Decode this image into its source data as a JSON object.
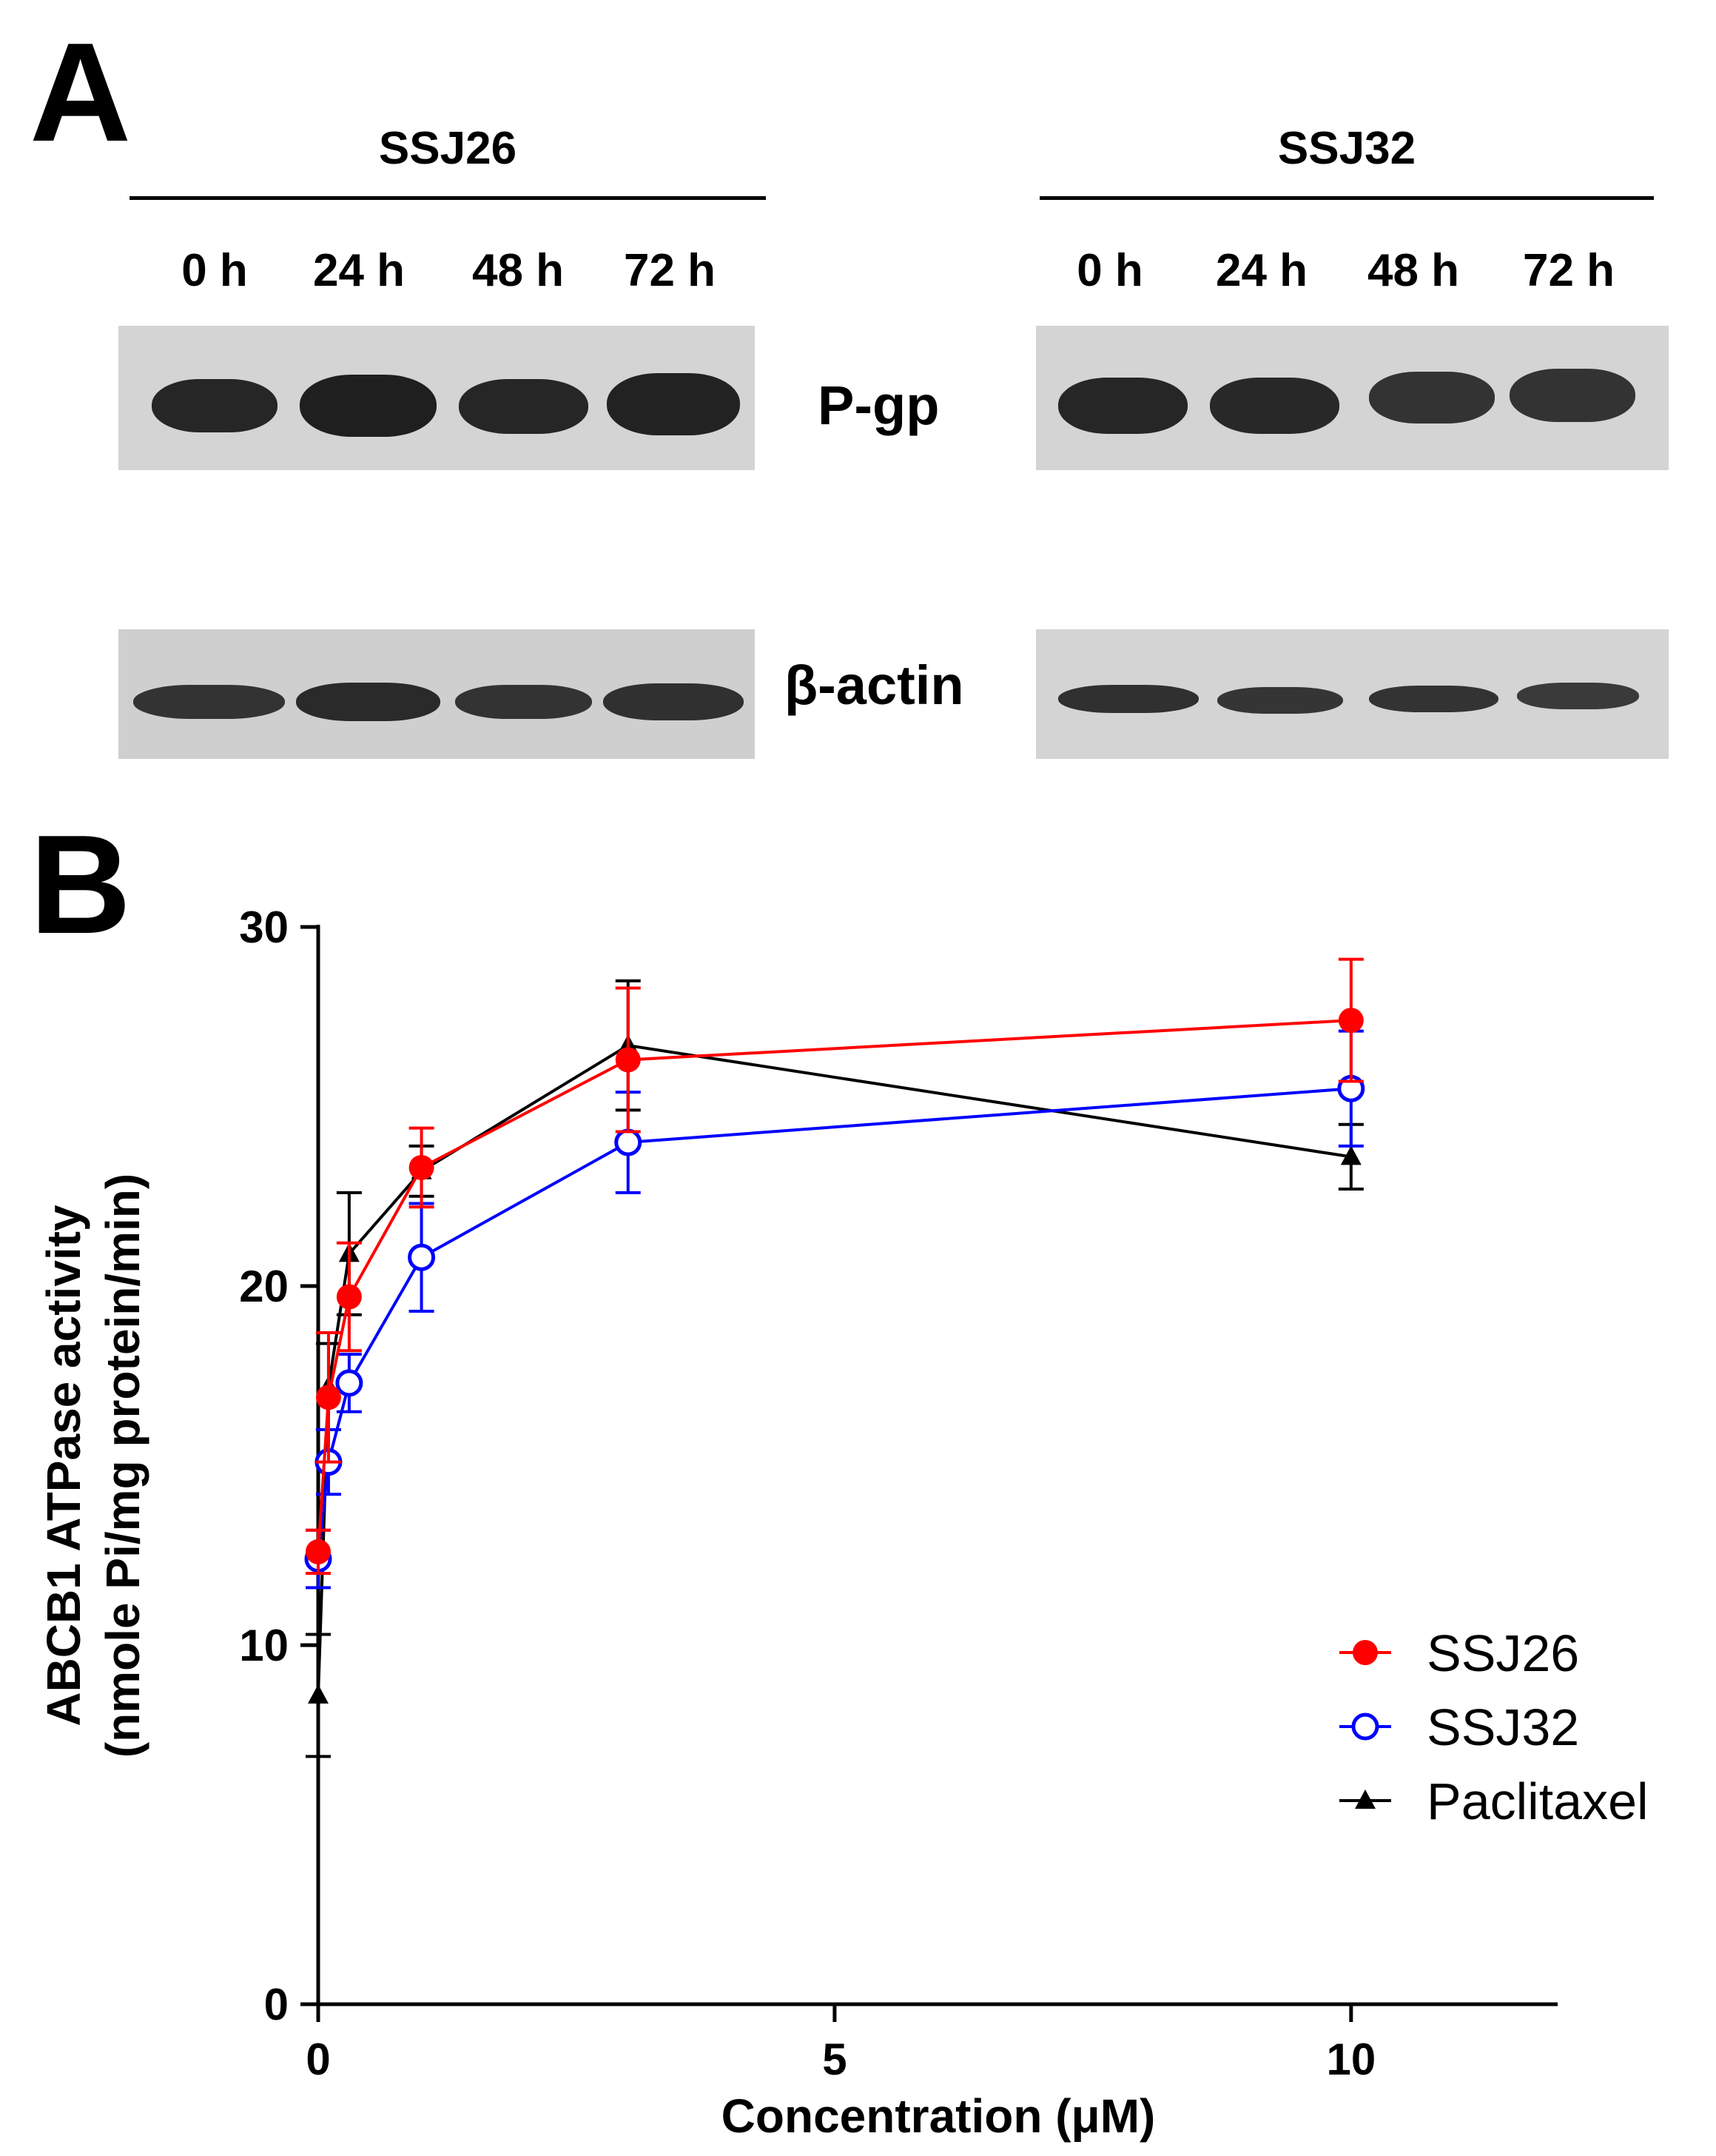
{
  "panelA": {
    "letter": "A",
    "groups": [
      {
        "name": "SSJ26",
        "lanes": [
          "0 h",
          "24 h",
          "48 h",
          "72 h"
        ]
      },
      {
        "name": "SSJ32",
        "lanes": [
          "0 h",
          "24 h",
          "48 h",
          "72 h"
        ]
      }
    ],
    "row_labels": {
      "pgp": "P-gp",
      "actin": "β-actin"
    }
  },
  "panelB": {
    "letter": "B"
  },
  "chart_data": {
    "type": "line",
    "xlabel": "Concentration (μM)",
    "ylabel_line1": "ABCB1 ATPase activity",
    "ylabel_line2": "(nmole Pi/mg protein/min)",
    "xlim": [
      0,
      12
    ],
    "ylim": [
      0,
      30
    ],
    "xticks": [
      0,
      5,
      10
    ],
    "yticks": [
      0,
      10,
      20,
      30
    ],
    "grid": false,
    "legend_position": "lower-right",
    "series": [
      {
        "name": "SSJ26",
        "color": "#ff0000",
        "marker": "filled-circle",
        "x": [
          0,
          0.1,
          0.3,
          1,
          3,
          10
        ],
        "y": [
          12.6,
          16.9,
          19.7,
          23.3,
          26.3,
          27.4
        ],
        "err": [
          0.6,
          1.8,
          1.5,
          1.1,
          2.0,
          1.7
        ]
      },
      {
        "name": "SSJ32",
        "color": "#0000ff",
        "marker": "open-circle",
        "x": [
          0,
          0.1,
          0.3,
          1,
          3,
          10
        ],
        "y": [
          12.4,
          15.1,
          17.3,
          20.8,
          24.0,
          25.5
        ],
        "err": [
          0.8,
          0.9,
          0.8,
          1.5,
          1.4,
          1.6
        ]
      },
      {
        "name": "Paclitaxel",
        "color": "#000000",
        "marker": "filled-triangle",
        "x": [
          0,
          0.1,
          0.3,
          1,
          3,
          10
        ],
        "y": [
          8.6,
          17.2,
          20.9,
          23.2,
          26.7,
          23.6
        ],
        "err": [
          1.7,
          1.2,
          1.7,
          0.7,
          1.8,
          0.9
        ]
      }
    ]
  }
}
